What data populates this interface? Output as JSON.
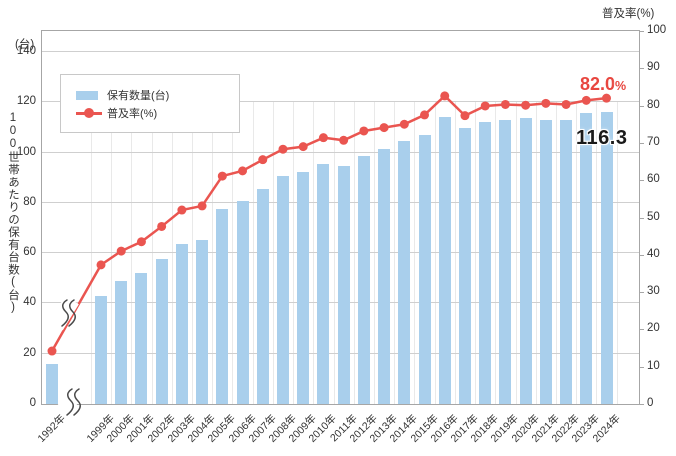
{
  "labels": {
    "left_unit": "(台)",
    "left_axis_title": "100世帯あたりの保有台数(台)",
    "right_axis_title": "普及率(%)"
  },
  "legend": {
    "items": [
      {
        "label": "保有数量(台)",
        "marker": "bar-swatch"
      },
      {
        "label": "普及率(%)",
        "marker": "line-dot"
      }
    ]
  },
  "callouts": {
    "rate_value": "82.0",
    "rate_unit": "%",
    "count_value": "116.3"
  },
  "colors": {
    "bar": "#a9cfec",
    "line": "#ea5550",
    "callout_rate": "#e8463f",
    "callout_count": "#1a1a1a",
    "grid": "#cfcfcf",
    "grid_vertical": "#e9e9e9",
    "axis_border": "#a6a6a6",
    "break_mark": "#4a4a4a",
    "text": "#333333"
  },
  "chart_data": {
    "type": "bar+line",
    "categories": [
      "1992年",
      "1999年",
      "2000年",
      "2001年",
      "2002年",
      "2003年",
      "2004年",
      "2005年",
      "2006年",
      "2007年",
      "2008年",
      "2009年",
      "2010年",
      "2011年",
      "2012年",
      "2013年",
      "2014年",
      "2015年",
      "2016年",
      "2017年",
      "2018年",
      "2019年",
      "2020年",
      "2021年",
      "2022年",
      "2023年",
      "2024年"
    ],
    "axis_break_after": "1992年",
    "series": [
      {
        "name": "保有数量(台)",
        "type": "bar",
        "axis": "left",
        "values": [
          15.9,
          43.0,
          49.0,
          52.0,
          57.5,
          63.6,
          65.2,
          77.4,
          80.9,
          85.5,
          90.5,
          92.3,
          95.6,
          94.8,
          98.5,
          101.5,
          104.7,
          107.1,
          114.0,
          109.8,
          112.2,
          113.1,
          113.9,
          112.8,
          113.1,
          115.6,
          116.3
        ]
      },
      {
        "name": "普及率(%)",
        "type": "line",
        "axis": "right",
        "values": [
          14.2,
          37.3,
          41.0,
          43.5,
          47.6,
          52.0,
          53.1,
          61.1,
          62.5,
          65.5,
          68.3,
          69.0,
          71.4,
          70.7,
          73.2,
          74.1,
          75.0,
          77.5,
          82.6,
          77.3,
          79.9,
          80.3,
          80.1,
          80.6,
          80.3,
          81.4,
          82.0
        ]
      }
    ],
    "left_axis": {
      "title": "100世帯あたりの保有台数(台)",
      "unit": "(台)",
      "min": 0,
      "max": 140,
      "tick_step": 20,
      "ticks": [
        0,
        20,
        40,
        60,
        80,
        100,
        120,
        140
      ]
    },
    "right_axis": {
      "title": "普及率(%)",
      "min": 0,
      "max": 100,
      "tick_step": 10,
      "ticks": [
        0,
        10,
        20,
        30,
        40,
        50,
        60,
        70,
        80,
        90,
        100
      ]
    },
    "grid": "horizontal+vertical",
    "legend_position": "top-left-inside",
    "annotations": [
      {
        "target": "2024年 普及率",
        "text": "82.0%"
      },
      {
        "target": "2024年 保有数量",
        "text": "116.3"
      }
    ]
  }
}
